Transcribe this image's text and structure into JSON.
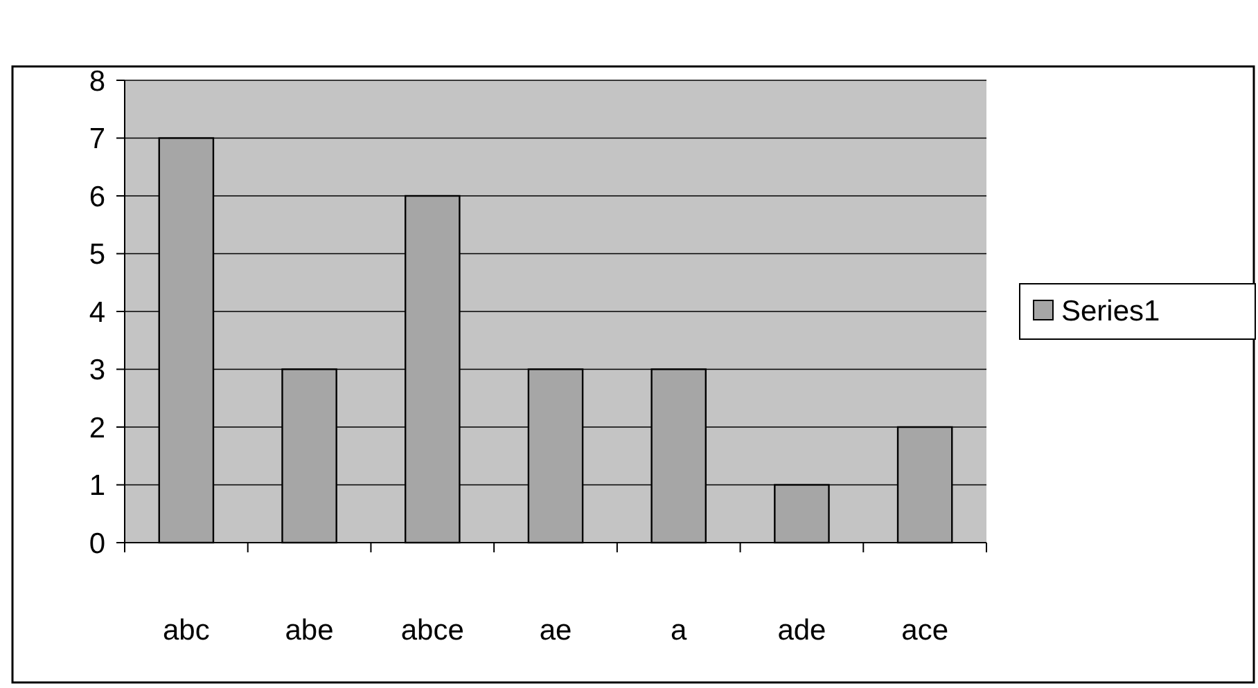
{
  "chart_data": {
    "type": "bar",
    "categories": [
      "abc",
      "abe",
      "abce",
      "ae",
      "a",
      "ade",
      "ace"
    ],
    "series": [
      {
        "name": "Series1",
        "color": "#a6a6a6",
        "values": [
          7,
          3,
          6,
          3,
          3,
          1,
          2
        ]
      }
    ],
    "ylim": [
      0,
      8
    ],
    "yticks": [
      0,
      1,
      2,
      3,
      4,
      5,
      6,
      7,
      8
    ],
    "grid": "y",
    "legend": "right"
  }
}
